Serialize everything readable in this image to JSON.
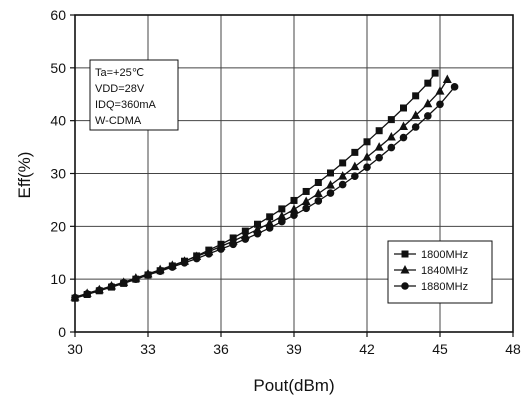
{
  "chart_data": {
    "type": "line",
    "xlabel": "Pout(dBm)",
    "ylabel": "Eff(%)",
    "xlim": [
      30,
      48
    ],
    "ylim": [
      0,
      60
    ],
    "xticks": [
      "30",
      "33",
      "36",
      "39",
      "42",
      "45",
      "48"
    ],
    "yticks": [
      "0",
      "10",
      "20",
      "30",
      "40",
      "50",
      "60"
    ],
    "grid": true,
    "legend_position": "bottom-right",
    "annotation_lines": [
      "Ta=+25℃",
      "VDD=28V",
      "IDQ=360mA",
      "W-CDMA"
    ],
    "series": [
      {
        "name": "1800MHz",
        "marker": "square",
        "x": [
          30.0,
          30.5,
          31.0,
          31.5,
          32.0,
          32.5,
          33.0,
          33.5,
          34.0,
          34.5,
          35.0,
          35.5,
          36.0,
          36.5,
          37.0,
          37.5,
          38.0,
          38.5,
          39.0,
          39.5,
          40.0,
          40.5,
          41.0,
          41.5,
          42.0,
          42.5,
          43.0,
          43.5,
          44.0,
          44.5,
          44.8
        ],
        "y": [
          6.4,
          7.1,
          7.8,
          8.5,
          9.2,
          10.0,
          10.8,
          11.6,
          12.5,
          13.4,
          14.4,
          15.5,
          16.6,
          17.8,
          19.1,
          20.4,
          21.8,
          23.3,
          24.9,
          26.6,
          28.3,
          30.1,
          32.0,
          34.0,
          36.0,
          38.1,
          40.2,
          42.4,
          44.7,
          47.1,
          49.0
        ]
      },
      {
        "name": "1840MHz",
        "marker": "triangle",
        "x": [
          30.0,
          30.5,
          31.0,
          31.5,
          32.0,
          32.5,
          33.0,
          33.5,
          34.0,
          34.5,
          35.0,
          35.5,
          36.0,
          36.5,
          37.0,
          37.5,
          38.0,
          38.5,
          39.0,
          39.5,
          40.0,
          40.5,
          41.0,
          41.5,
          42.0,
          42.5,
          43.0,
          43.5,
          44.0,
          44.5,
          45.0,
          45.3
        ],
        "y": [
          6.6,
          7.3,
          8.0,
          8.7,
          9.4,
          10.2,
          11.0,
          11.8,
          12.6,
          13.4,
          14.3,
          15.2,
          16.2,
          17.2,
          18.3,
          19.4,
          20.6,
          21.9,
          23.2,
          24.7,
          26.2,
          27.8,
          29.5,
          31.3,
          33.1,
          35.0,
          36.9,
          38.9,
          41.0,
          43.2,
          45.6,
          47.8
        ]
      },
      {
        "name": "1880MHz",
        "marker": "circle",
        "x": [
          30.0,
          30.5,
          31.0,
          31.5,
          32.0,
          32.5,
          33.0,
          33.5,
          34.0,
          34.5,
          35.0,
          35.5,
          36.0,
          36.5,
          37.0,
          37.5,
          38.0,
          38.5,
          39.0,
          39.5,
          40.0,
          40.5,
          41.0,
          41.5,
          42.0,
          42.5,
          43.0,
          43.5,
          44.0,
          44.5,
          45.0,
          45.6
        ],
        "y": [
          6.5,
          7.2,
          7.9,
          8.6,
          9.3,
          10.0,
          10.8,
          11.5,
          12.3,
          13.1,
          13.9,
          14.8,
          15.7,
          16.6,
          17.6,
          18.6,
          19.7,
          20.9,
          22.1,
          23.4,
          24.8,
          26.3,
          27.9,
          29.5,
          31.2,
          33.0,
          34.9,
          36.8,
          38.8,
          40.9,
          43.1,
          46.4
        ]
      }
    ]
  }
}
